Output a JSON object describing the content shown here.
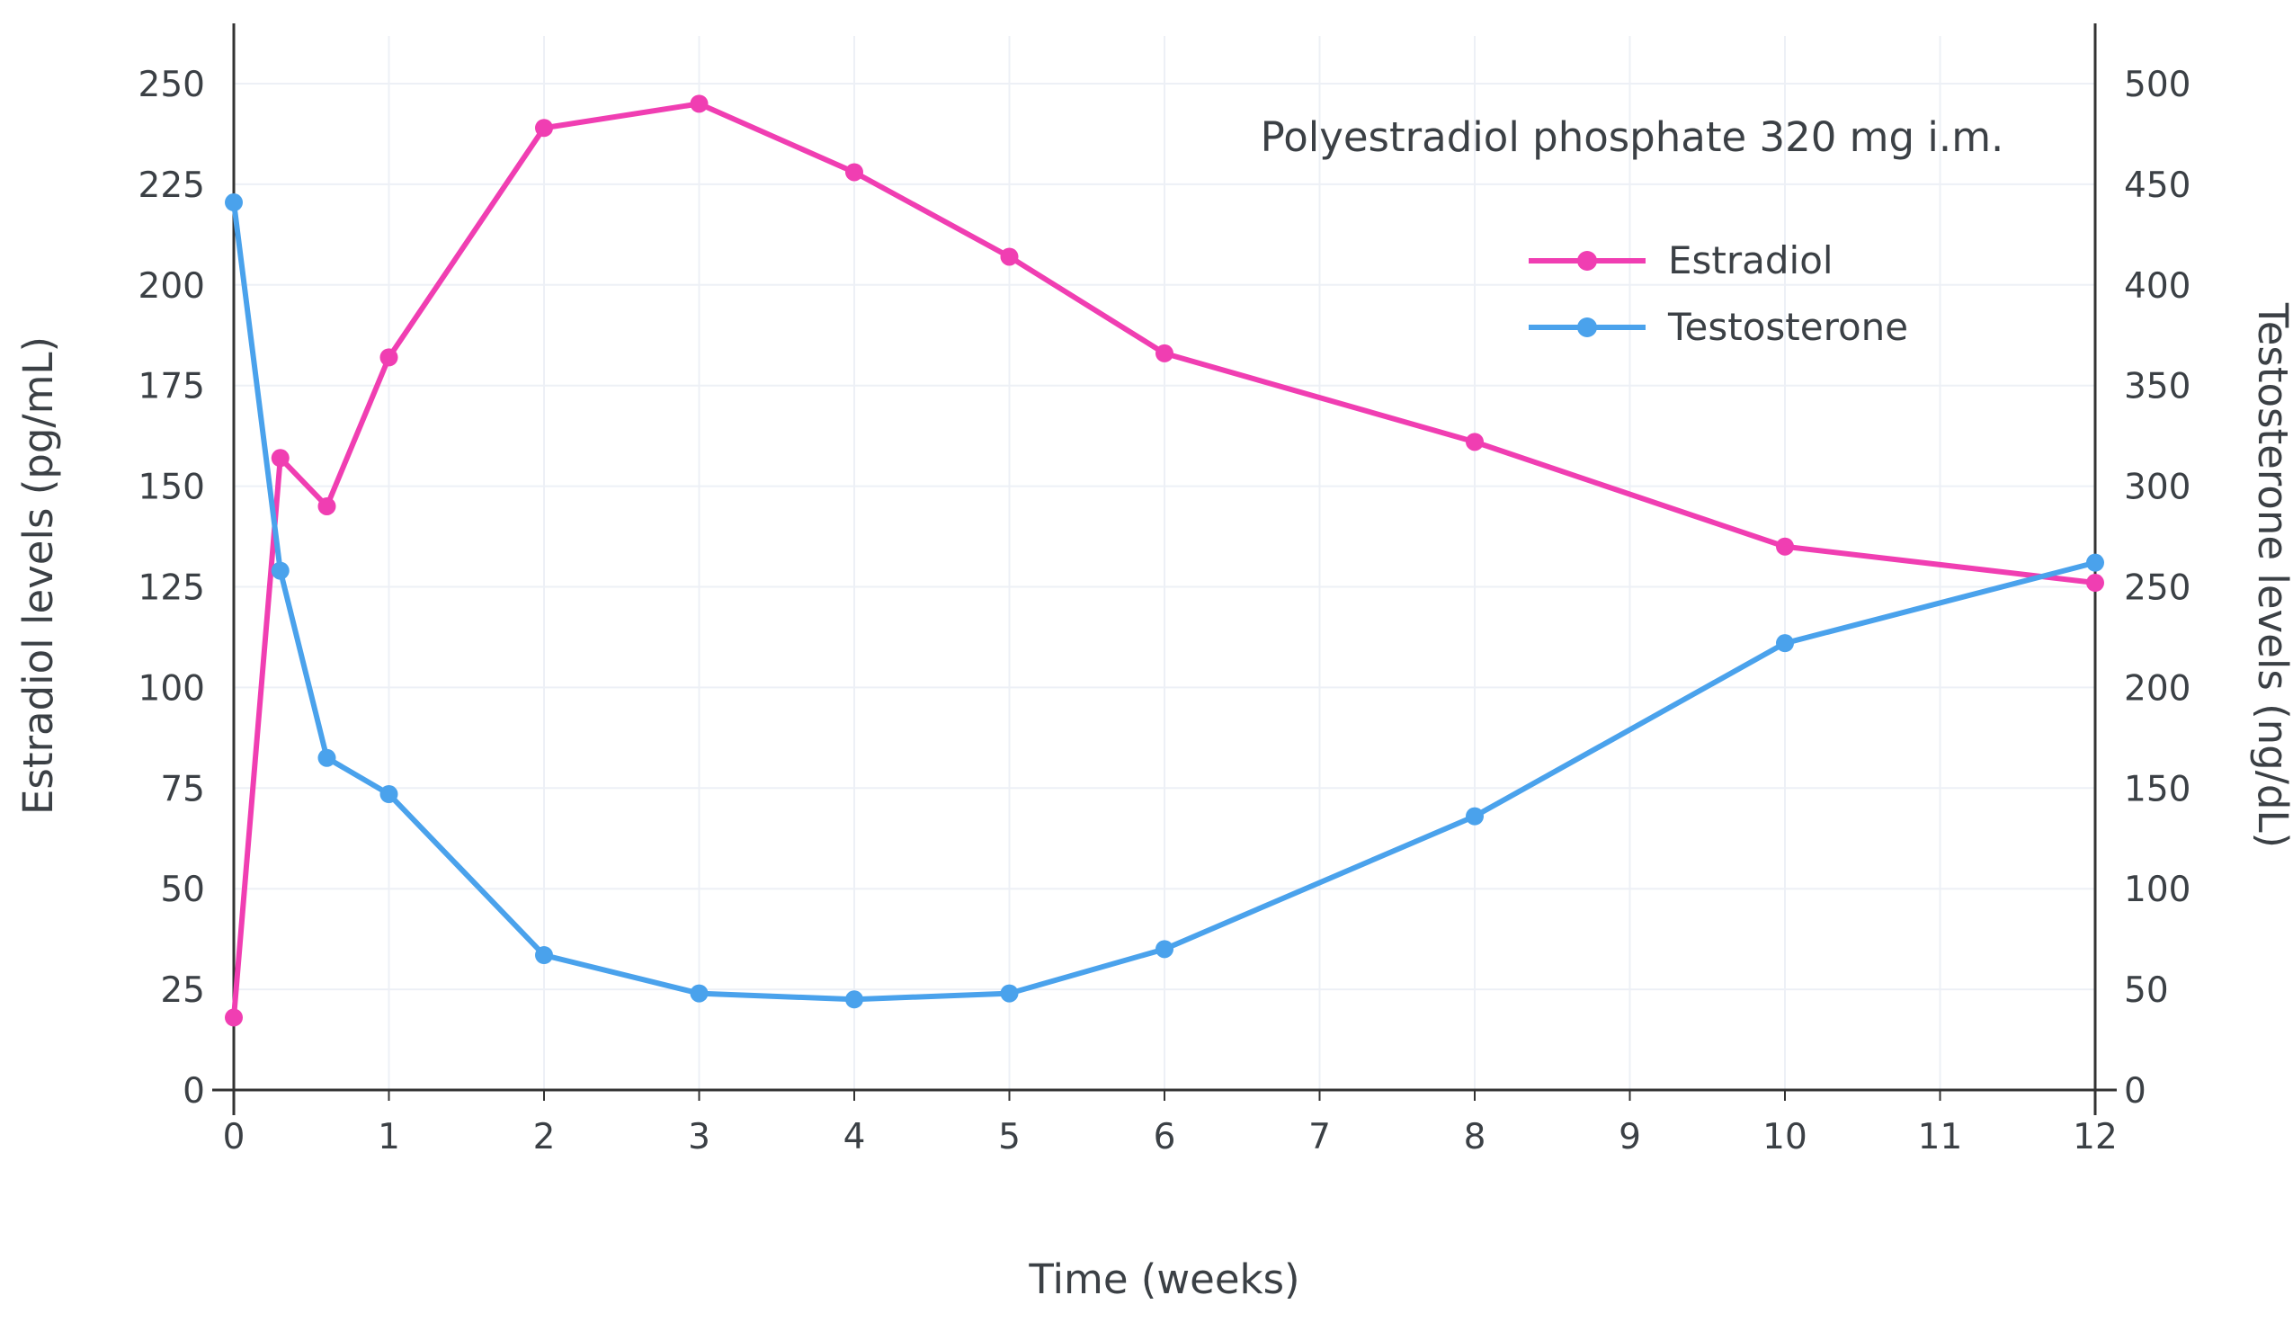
{
  "chart_data": {
    "type": "line",
    "annotation": "Polyestradiol phosphate 320 mg i.m.",
    "xlabel": "Time (weeks)",
    "ylabel_left": "Estradiol levels (pg/mL)",
    "ylabel_right": "Testosterone levels (ng/dL)",
    "xlim": [
      0,
      12
    ],
    "ylim_left": [
      0,
      250
    ],
    "ylim_right": [
      0,
      500
    ],
    "x_ticks": [
      0,
      1,
      2,
      3,
      4,
      5,
      6,
      7,
      8,
      9,
      10,
      11,
      12
    ],
    "y_left_ticks": [
      0,
      25,
      50,
      75,
      100,
      125,
      150,
      175,
      200,
      225,
      250
    ],
    "y_right_ticks": [
      0,
      50,
      100,
      150,
      200,
      250,
      300,
      350,
      400,
      450,
      500
    ],
    "grid": true,
    "legend_position": "upper-right",
    "series": [
      {
        "name": "Estradiol",
        "axis": "left",
        "color": "#f03eb2",
        "x": [
          0,
          0.3,
          0.6,
          1,
          2,
          3,
          4,
          5,
          6,
          8,
          10,
          12
        ],
        "values": [
          18,
          157,
          145,
          182,
          239,
          245,
          228,
          207,
          183,
          161,
          135,
          126
        ]
      },
      {
        "name": "Testosterone",
        "axis": "right",
        "color": "#4aa2ec",
        "x": [
          0,
          0.3,
          0.6,
          1,
          2,
          3,
          4,
          5,
          6,
          8,
          10,
          12
        ],
        "values": [
          441,
          258,
          165,
          147,
          67,
          48,
          45,
          48,
          70,
          136,
          222,
          262
        ]
      }
    ]
  }
}
